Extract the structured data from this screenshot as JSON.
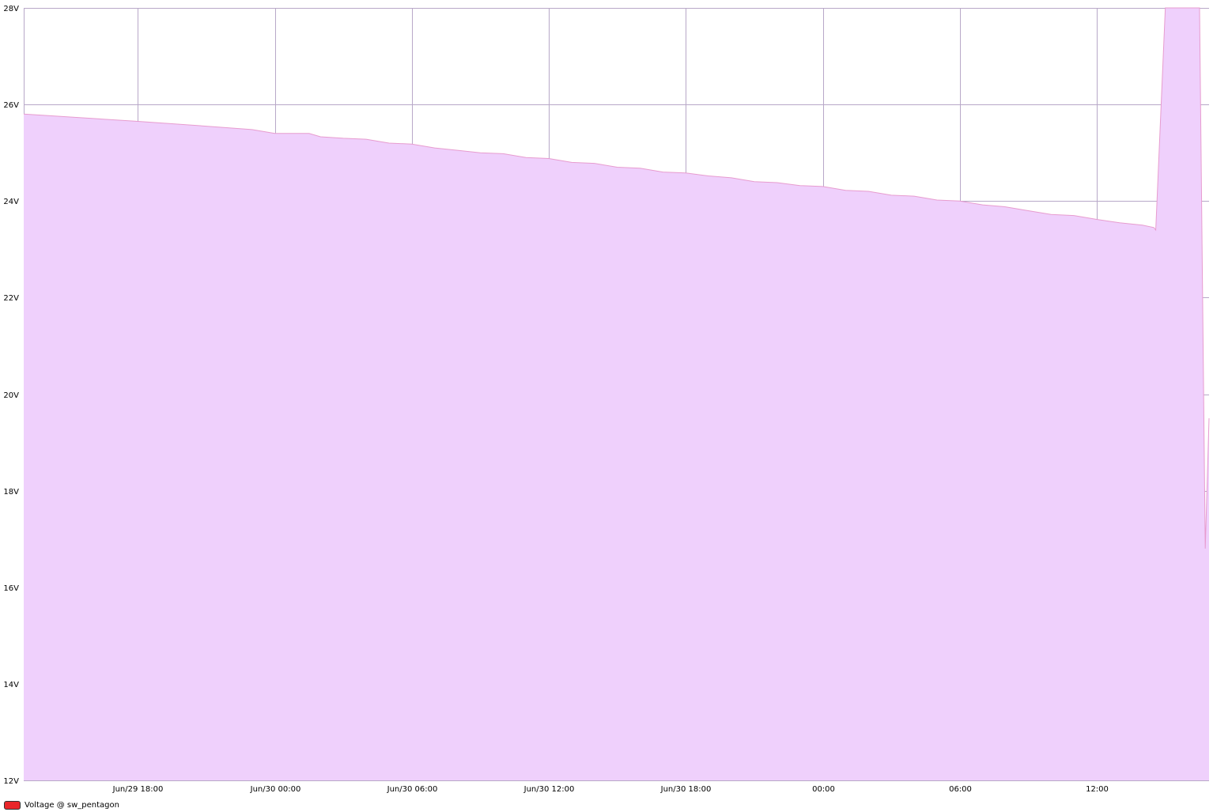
{
  "chart_data": {
    "type": "area",
    "title": "",
    "xlabel": "",
    "ylabel": "",
    "x_unit": "datetime",
    "xlim": [
      "Jun/29 13:00",
      "Jul/01 16:55"
    ],
    "ylim": [
      12,
      28
    ],
    "grid": true,
    "yticks": [
      {
        "value": 12,
        "label": "12V"
      },
      {
        "value": 14,
        "label": "14V"
      },
      {
        "value": 16,
        "label": "16V"
      },
      {
        "value": 18,
        "label": "18V"
      },
      {
        "value": 20,
        "label": "20V"
      },
      {
        "value": 22,
        "label": "22V"
      },
      {
        "value": 24,
        "label": "24V"
      },
      {
        "value": 26,
        "label": "26V"
      },
      {
        "value": 28,
        "label": "28V"
      }
    ],
    "xticks": [
      {
        "value": "Jun/29 18:00",
        "label": "Jun/29 18:00"
      },
      {
        "value": "Jun/30 00:00",
        "label": "Jun/30 00:00"
      },
      {
        "value": "Jun/30 06:00",
        "label": "Jun/30 06:00"
      },
      {
        "value": "Jun/30 12:00",
        "label": "Jun/30 12:00"
      },
      {
        "value": "Jun/30 18:00",
        "label": "Jun/30 18:00"
      },
      {
        "value": "Jul/01 00:00",
        "label": "00:00"
      },
      {
        "value": "Jul/01 06:00",
        "label": "06:00"
      },
      {
        "value": "Jul/01 12:00",
        "label": "12:00"
      }
    ],
    "legend_position": "bottom-left",
    "series": [
      {
        "name": "Voltage @ sw_pentagon",
        "swatch_color": "#e8262a",
        "line_color": "#e79ccf",
        "fill_color": "#efd0fc",
        "points": [
          [
            "Jun/29 13:00",
            25.8
          ],
          [
            "Jun/29 18:00",
            25.65
          ],
          [
            "Jun/29 21:00",
            25.55
          ],
          [
            "Jun/29 23:00",
            25.48
          ],
          [
            "Jun/30 00:00",
            25.4
          ],
          [
            "Jun/30 01:30",
            25.4
          ],
          [
            "Jun/30 02:00",
            25.33
          ],
          [
            "Jun/30 03:00",
            25.3
          ],
          [
            "Jun/30 04:00",
            25.28
          ],
          [
            "Jun/30 05:00",
            25.2
          ],
          [
            "Jun/30 06:00",
            25.18
          ],
          [
            "Jun/30 07:00",
            25.1
          ],
          [
            "Jun/30 08:00",
            25.05
          ],
          [
            "Jun/30 09:00",
            25.0
          ],
          [
            "Jun/30 10:00",
            24.98
          ],
          [
            "Jun/30 11:00",
            24.9
          ],
          [
            "Jun/30 12:00",
            24.88
          ],
          [
            "Jun/30 13:00",
            24.8
          ],
          [
            "Jun/30 14:00",
            24.78
          ],
          [
            "Jun/30 15:00",
            24.7
          ],
          [
            "Jun/30 16:00",
            24.68
          ],
          [
            "Jun/30 17:00",
            24.6
          ],
          [
            "Jun/30 18:00",
            24.58
          ],
          [
            "Jun/30 19:00",
            24.52
          ],
          [
            "Jun/30 20:00",
            24.48
          ],
          [
            "Jun/30 21:00",
            24.4
          ],
          [
            "Jun/30 22:00",
            24.38
          ],
          [
            "Jun/30 23:00",
            24.32
          ],
          [
            "Jul/01 00:00",
            24.3
          ],
          [
            "Jul/01 01:00",
            24.22
          ],
          [
            "Jul/01 02:00",
            24.2
          ],
          [
            "Jul/01 03:00",
            24.12
          ],
          [
            "Jul/01 04:00",
            24.1
          ],
          [
            "Jul/01 05:00",
            24.02
          ],
          [
            "Jul/01 06:00",
            24.0
          ],
          [
            "Jul/01 07:00",
            23.92
          ],
          [
            "Jul/01 08:00",
            23.88
          ],
          [
            "Jul/01 09:00",
            23.8
          ],
          [
            "Jul/01 10:00",
            23.72
          ],
          [
            "Jul/01 11:00",
            23.7
          ],
          [
            "Jul/01 12:00",
            23.62
          ],
          [
            "Jul/01 13:00",
            23.55
          ],
          [
            "Jul/01 14:00",
            23.5
          ],
          [
            "Jul/01 14:30",
            23.45
          ],
          [
            "Jul/01 14:35",
            23.4
          ],
          [
            "Jul/01 15:00",
            28.0
          ],
          [
            "Jul/01 16:30",
            28.0
          ],
          [
            "Jul/01 16:45",
            16.8
          ],
          [
            "Jul/01 16:55",
            19.5
          ]
        ]
      }
    ]
  }
}
